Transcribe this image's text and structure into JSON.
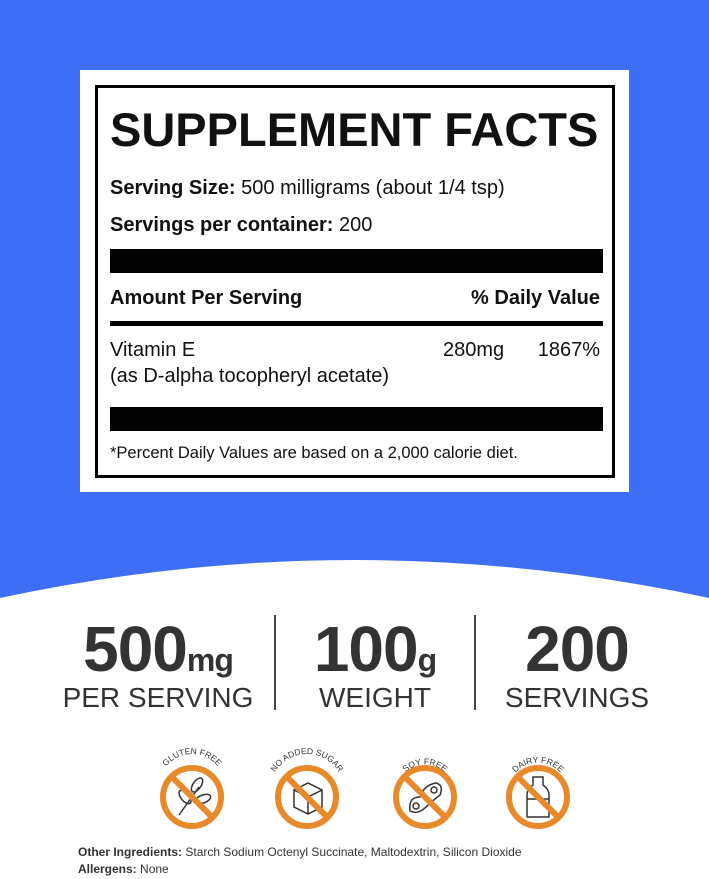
{
  "colors": {
    "background_blue": "#3d6ef5",
    "badge_orange": "#e8892a"
  },
  "facts": {
    "title": "SUPPLEMENT FACTS",
    "serving_size_label": "Serving Size:",
    "serving_size_value": "500 milligrams (about 1/4 tsp)",
    "servings_label": "Servings per container:",
    "servings_value": "200",
    "amount_header": "Amount Per Serving",
    "dv_header": "% Daily Value",
    "nutrient": "Vitamin E",
    "nutrient_amount": "280mg",
    "nutrient_dv": "1867%",
    "nutrient_source": "(as D-alpha tocopheryl acetate)",
    "footnote": "*Percent Daily Values are based on a 2,000 calorie diet."
  },
  "stats": [
    {
      "value": "500",
      "unit": "mg",
      "label": "PER SERVING"
    },
    {
      "value": "100",
      "unit": "g",
      "label": "WEIGHT"
    },
    {
      "value": "200",
      "unit": "",
      "label": "SERVINGS"
    }
  ],
  "badges": [
    {
      "label": "GLUTEN FREE",
      "icon": "wheat-icon"
    },
    {
      "label": "NO ADDED SUGAR",
      "icon": "sugar-cube-icon"
    },
    {
      "label": "SOY FREE",
      "icon": "soybean-icon"
    },
    {
      "label": "DAIRY FREE",
      "icon": "milk-bottle-icon"
    }
  ],
  "footer": {
    "ingredients_label": "Other Ingredients:",
    "ingredients_value": "Starch Sodium Octenyl Succinate, Maltodextrin, Silicon Dioxide",
    "allergens_label": "Allergens:",
    "allergens_value": "None"
  }
}
